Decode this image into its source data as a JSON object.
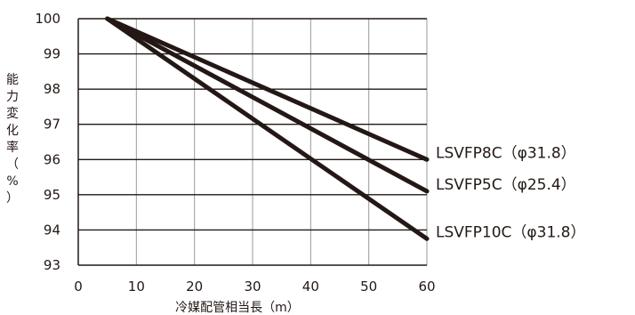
{
  "chart_data": {
    "type": "line",
    "xlabel": "冷媒配管相当長（m）",
    "ylabel": "能力変化率（%）",
    "xlim": [
      0,
      60
    ],
    "ylim": [
      93,
      100
    ],
    "x_ticks": [
      0,
      10,
      20,
      30,
      40,
      50,
      60
    ],
    "y_ticks": [
      93,
      94,
      95,
      96,
      97,
      98,
      99,
      100
    ],
    "grid": true,
    "line_color": "#231815",
    "grid_color": "#999999",
    "series": [
      {
        "name": "LSVFP8C（φ31.8）",
        "x": [
          5,
          60
        ],
        "y": [
          100,
          96.0
        ]
      },
      {
        "name": "LSVFP5C（φ25.4）",
        "x": [
          5,
          60
        ],
        "y": [
          100,
          95.1
        ]
      },
      {
        "name": "LSVFP10C（φ31.8）",
        "x": [
          5,
          60
        ],
        "y": [
          100,
          93.75
        ]
      }
    ]
  }
}
